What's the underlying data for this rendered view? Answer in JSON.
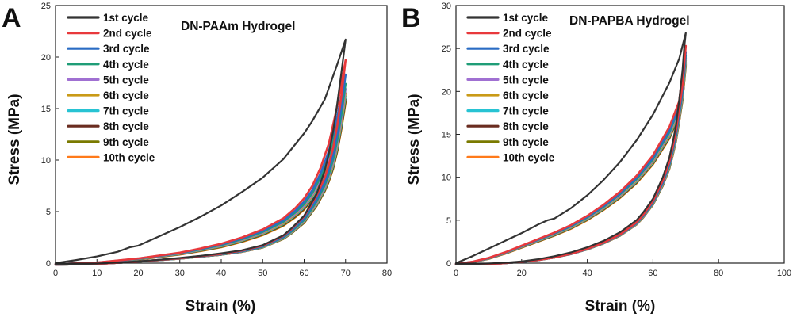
{
  "chart_data": [
    {
      "panel": "A",
      "type": "line",
      "title": "DN-PAAm Hydrogel",
      "xlabel": "Strain (%)",
      "ylabel": "Stress (MPa)",
      "xlim": [
        0,
        80
      ],
      "ylim": [
        0,
        25
      ],
      "xticks": [
        0,
        10,
        20,
        30,
        40,
        50,
        60,
        70,
        80
      ],
      "yticks": [
        0,
        5,
        10,
        15,
        20,
        25
      ],
      "legend_position": "top-left",
      "loading_first": {
        "x": [
          0,
          5,
          10,
          15,
          18,
          20,
          25,
          30,
          35,
          40,
          45,
          50,
          55,
          60,
          62,
          65,
          68,
          70
        ],
        "y": [
          0,
          0.3,
          0.65,
          1.1,
          1.55,
          1.7,
          2.6,
          3.5,
          4.5,
          5.6,
          6.9,
          8.3,
          10.1,
          12.6,
          13.8,
          15.9,
          19.3,
          21.7
        ]
      },
      "unloading_first": {
        "x": [
          70,
          69,
          68,
          67,
          66,
          65,
          63,
          60,
          57,
          55,
          50,
          45,
          40,
          35,
          30,
          25,
          20,
          15,
          10,
          5,
          0
        ],
        "y": [
          21.7,
          18.5,
          15.5,
          12.8,
          10.7,
          9.0,
          6.7,
          4.6,
          3.4,
          2.7,
          1.75,
          1.25,
          0.95,
          0.7,
          0.5,
          0.32,
          0.18,
          0.06,
          -0.05,
          -0.1,
          -0.1
        ]
      },
      "loading_typical": {
        "x": [
          0,
          10,
          20,
          30,
          35,
          40,
          45,
          50,
          55,
          58,
          60,
          62,
          64,
          66,
          68,
          70
        ],
        "y": [
          -0.1,
          0.0,
          0.35,
          0.85,
          1.2,
          1.6,
          2.15,
          2.85,
          3.85,
          4.8,
          5.6,
          6.7,
          8.3,
          10.4,
          13.6,
          17.5
        ]
      },
      "unloading_typical": {
        "x": [
          70,
          69,
          68,
          67,
          66,
          65,
          63,
          60,
          57,
          55,
          50,
          45,
          40,
          35,
          30,
          25,
          20,
          15,
          10,
          5,
          0
        ],
        "y": [
          17.5,
          14.5,
          12.0,
          10.1,
          8.7,
          7.6,
          6.0,
          4.2,
          3.1,
          2.5,
          1.6,
          1.15,
          0.85,
          0.65,
          0.45,
          0.3,
          0.15,
          0.03,
          -0.07,
          -0.12,
          -0.15
        ]
      },
      "series": [
        {
          "name": "1st cycle",
          "color": "#333333",
          "peak": 21.7
        },
        {
          "name": "2nd cycle",
          "color": "#e8393c",
          "peak": 19.7
        },
        {
          "name": "3rd cycle",
          "color": "#2a6cc4",
          "peak": 18.3
        },
        {
          "name": "4th cycle",
          "color": "#1f9d77",
          "peak": 17.4
        },
        {
          "name": "5th  cycle",
          "color": "#a070d2",
          "peak": 16.9
        },
        {
          "name": "6th  cycle",
          "color": "#c99a17",
          "peak": 16.5
        },
        {
          "name": "7th cycle",
          "color": "#27c3d3",
          "peak": 16.2
        },
        {
          "name": "8th cycle",
          "color": "#6a2c20",
          "peak": 15.9
        },
        {
          "name": "9th cycle",
          "color": "#7a7a00",
          "peak": 15.7
        },
        {
          "name": "10th cycle",
          "color": "#ff7a1a",
          "peak": 15.6
        }
      ]
    },
    {
      "panel": "B",
      "type": "line",
      "title": "DN-PAPBA Hydrogel",
      "xlabel": "Strain (%)",
      "ylabel": "Stress (MPa)",
      "xlim": [
        0,
        100
      ],
      "ylim": [
        0,
        30
      ],
      "xticks": [
        0,
        20,
        40,
        60,
        80,
        100
      ],
      "yticks": [
        0,
        5,
        10,
        15,
        20,
        25,
        30
      ],
      "legend_position": "top-left",
      "loading_first": {
        "x": [
          0,
          5,
          10,
          15,
          20,
          25,
          28,
          30,
          35,
          40,
          45,
          50,
          55,
          60,
          65,
          68,
          70
        ],
        "y": [
          0,
          0.8,
          1.7,
          2.6,
          3.5,
          4.5,
          5.0,
          5.2,
          6.4,
          7.9,
          9.7,
          11.8,
          14.3,
          17.3,
          21.0,
          23.8,
          26.8
        ]
      },
      "unloading_first": {
        "x": [
          70,
          69.5,
          69,
          68,
          67,
          66,
          65,
          63,
          60,
          57,
          55,
          50,
          45,
          40,
          35,
          30,
          25,
          20,
          15,
          10,
          5,
          0
        ],
        "y": [
          26.8,
          25.0,
          22.5,
          19.0,
          16.0,
          14.0,
          12.3,
          10.0,
          7.5,
          5.9,
          5.0,
          3.6,
          2.6,
          1.85,
          1.25,
          0.8,
          0.45,
          0.2,
          0.05,
          -0.05,
          -0.1,
          -0.1
        ]
      },
      "loading_typical": {
        "x": [
          0,
          5,
          10,
          15,
          20,
          25,
          30,
          35,
          40,
          45,
          50,
          55,
          60,
          65,
          68,
          70
        ],
        "y": [
          -0.1,
          0.1,
          0.5,
          1.1,
          1.8,
          2.5,
          3.2,
          4.0,
          5.0,
          6.2,
          7.6,
          9.3,
          11.5,
          14.5,
          17.2,
          23.0
        ]
      },
      "unloading_typical": {
        "x": [
          70,
          69.5,
          69,
          68,
          67,
          66,
          65,
          63,
          60,
          57,
          55,
          50,
          45,
          40,
          35,
          30,
          25,
          20,
          15,
          10,
          5,
          0
        ],
        "y": [
          23.0,
          21.0,
          19.0,
          16.5,
          14.2,
          12.5,
          11.0,
          9.0,
          6.8,
          5.3,
          4.5,
          3.2,
          2.3,
          1.6,
          1.05,
          0.65,
          0.35,
          0.15,
          0.0,
          -0.1,
          -0.15,
          -0.15
        ]
      },
      "series": [
        {
          "name": "1st cycle",
          "color": "#333333",
          "peak": 26.8
        },
        {
          "name": "2nd cycle",
          "color": "#e8393c",
          "peak": 25.3
        },
        {
          "name": "3rd cycle",
          "color": "#2a6cc4",
          "peak": 24.6
        },
        {
          "name": "4th cycle",
          "color": "#1f9d77",
          "peak": 24.2
        },
        {
          "name": "5th cycle",
          "color": "#a070d2",
          "peak": 23.9
        },
        {
          "name": "6th cycle",
          "color": "#c99a17",
          "peak": 23.6
        },
        {
          "name": "7th cycle",
          "color": "#27c3d3",
          "peak": 23.4
        },
        {
          "name": "8th cycle",
          "color": "#6a2c20",
          "peak": 23.2
        },
        {
          "name": "9th cycle",
          "color": "#7a7a00",
          "peak": 23.1
        },
        {
          "name": "10th cycle",
          "color": "#ff7a1a",
          "peak": 23.0
        }
      ]
    }
  ]
}
